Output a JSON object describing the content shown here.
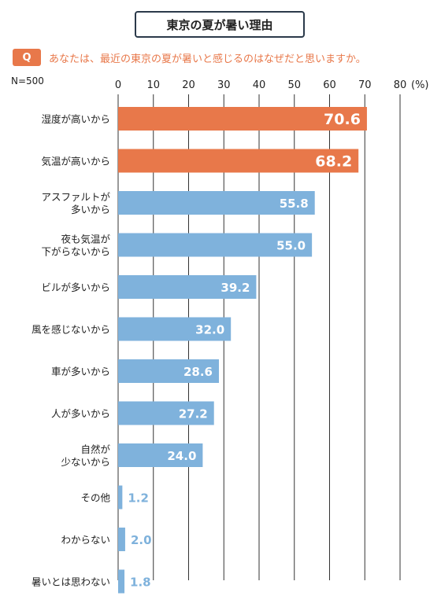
{
  "header": {
    "title": "東京の夏が暑い理由",
    "q_badge": "Q",
    "question": "あなたは、最近の東京の夏が暑いと感じるのはなぜだと思いますか。",
    "sample_size": "N=500"
  },
  "colors": {
    "highlight": "#e8784a",
    "bar": "#7fb2dc",
    "outside_label": "#7fb2dc",
    "grid": "#333333"
  },
  "chart_data": {
    "type": "bar",
    "orientation": "horizontal",
    "title": "東京の夏が暑い理由",
    "xlabel": "",
    "ylabel": "",
    "unit_label": "(%)",
    "xlim": [
      0,
      80
    ],
    "xticks": [
      0,
      10,
      20,
      30,
      40,
      50,
      60,
      70,
      80
    ],
    "grid": true,
    "categories": [
      [
        "湿度が高いから"
      ],
      [
        "気温が高いから"
      ],
      [
        "アスファルトが",
        "多いから"
      ],
      [
        "夜も気温が",
        "下がらないから"
      ],
      [
        "ビルが多いから"
      ],
      [
        "風を感じないから"
      ],
      [
        "車が多いから"
      ],
      [
        "人が多いから"
      ],
      [
        "自然が",
        "少ないから"
      ],
      [
        "その他"
      ],
      [
        "わからない"
      ],
      [
        "暑いとは思わない"
      ]
    ],
    "values": [
      70.6,
      68.2,
      55.8,
      55.0,
      39.2,
      32.0,
      28.6,
      27.2,
      24.0,
      1.2,
      2.0,
      1.8
    ],
    "value_labels": [
      "70.6",
      "68.2",
      "55.8",
      "55.0",
      "39.2",
      "32.0",
      "28.6",
      "27.2",
      "24.0",
      "1.2",
      "2.0",
      "1.8"
    ],
    "highlighted": [
      true,
      true,
      false,
      false,
      false,
      false,
      false,
      false,
      false,
      false,
      false,
      false
    ]
  }
}
